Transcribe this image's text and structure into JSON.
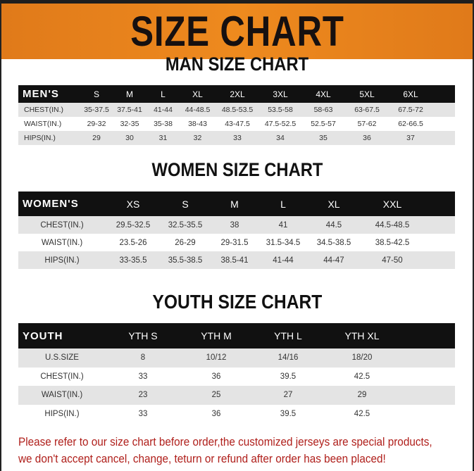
{
  "banner_title": "SIZE CHART",
  "colors": {
    "banner": "#ee8a1e",
    "header_row": "#111111",
    "note": "#b0201c"
  },
  "men": {
    "title": "MAN SIZE CHART",
    "header": [
      "MEN'S",
      "S",
      "M",
      "L",
      "XL",
      "2XL",
      "3XL",
      "4XL",
      "5XL",
      "6XL"
    ],
    "rows": [
      [
        "CHEST(IN.)",
        "35-37.5",
        "37.5-41",
        "41-44",
        "44-48.5",
        "48.5-53.5",
        "53.5-58",
        "58-63",
        "63-67.5",
        "67.5-72"
      ],
      [
        "WAIST(IN.)",
        "29-32",
        "32-35",
        "35-38",
        "38-43",
        "43-47.5",
        "47.5-52.5",
        "52.5-57",
        "57-62",
        "62-66.5"
      ],
      [
        "HIPS(IN.)",
        "29",
        "30",
        "31",
        "32",
        "33",
        "34",
        "35",
        "36",
        "37"
      ]
    ]
  },
  "women": {
    "title": "WOMEN SIZE CHART",
    "header": [
      "WOMEN'S",
      "XS",
      "S",
      "M",
      "L",
      "XL",
      "XXL"
    ],
    "rows": [
      [
        "CHEST(IN.)",
        "29.5-32.5",
        "32.5-35.5",
        "38",
        "41",
        "44.5",
        "44.5-48.5"
      ],
      [
        "WAIST(IN.)",
        "23.5-26",
        "26-29",
        "29-31.5",
        "31.5-34.5",
        "34.5-38.5",
        "38.5-42.5"
      ],
      [
        "HIPS(IN.)",
        "33-35.5",
        "35.5-38.5",
        "38.5-41",
        "41-44",
        "44-47",
        "47-50"
      ]
    ]
  },
  "youth": {
    "title": "YOUTH SIZE CHART",
    "header": [
      "YOUTH",
      "YTH S",
      "YTH M",
      "YTH L",
      "YTH XL"
    ],
    "rows": [
      [
        "U.S.SIZE",
        "8",
        "10/12",
        "14/16",
        "18/20"
      ],
      [
        "CHEST(IN.)",
        "33",
        "36",
        "39.5",
        "42.5"
      ],
      [
        "WAIST(IN.)",
        "23",
        "25",
        "27",
        "29"
      ],
      [
        "HIPS(IN.)",
        "33",
        "36",
        "39.5",
        "42.5"
      ]
    ]
  },
  "note": [
    "Please refer to our size chart before order,the customized jerseys are special products,",
    "we don't accept cancel, change, teturn or refund after order has been placed!"
  ]
}
